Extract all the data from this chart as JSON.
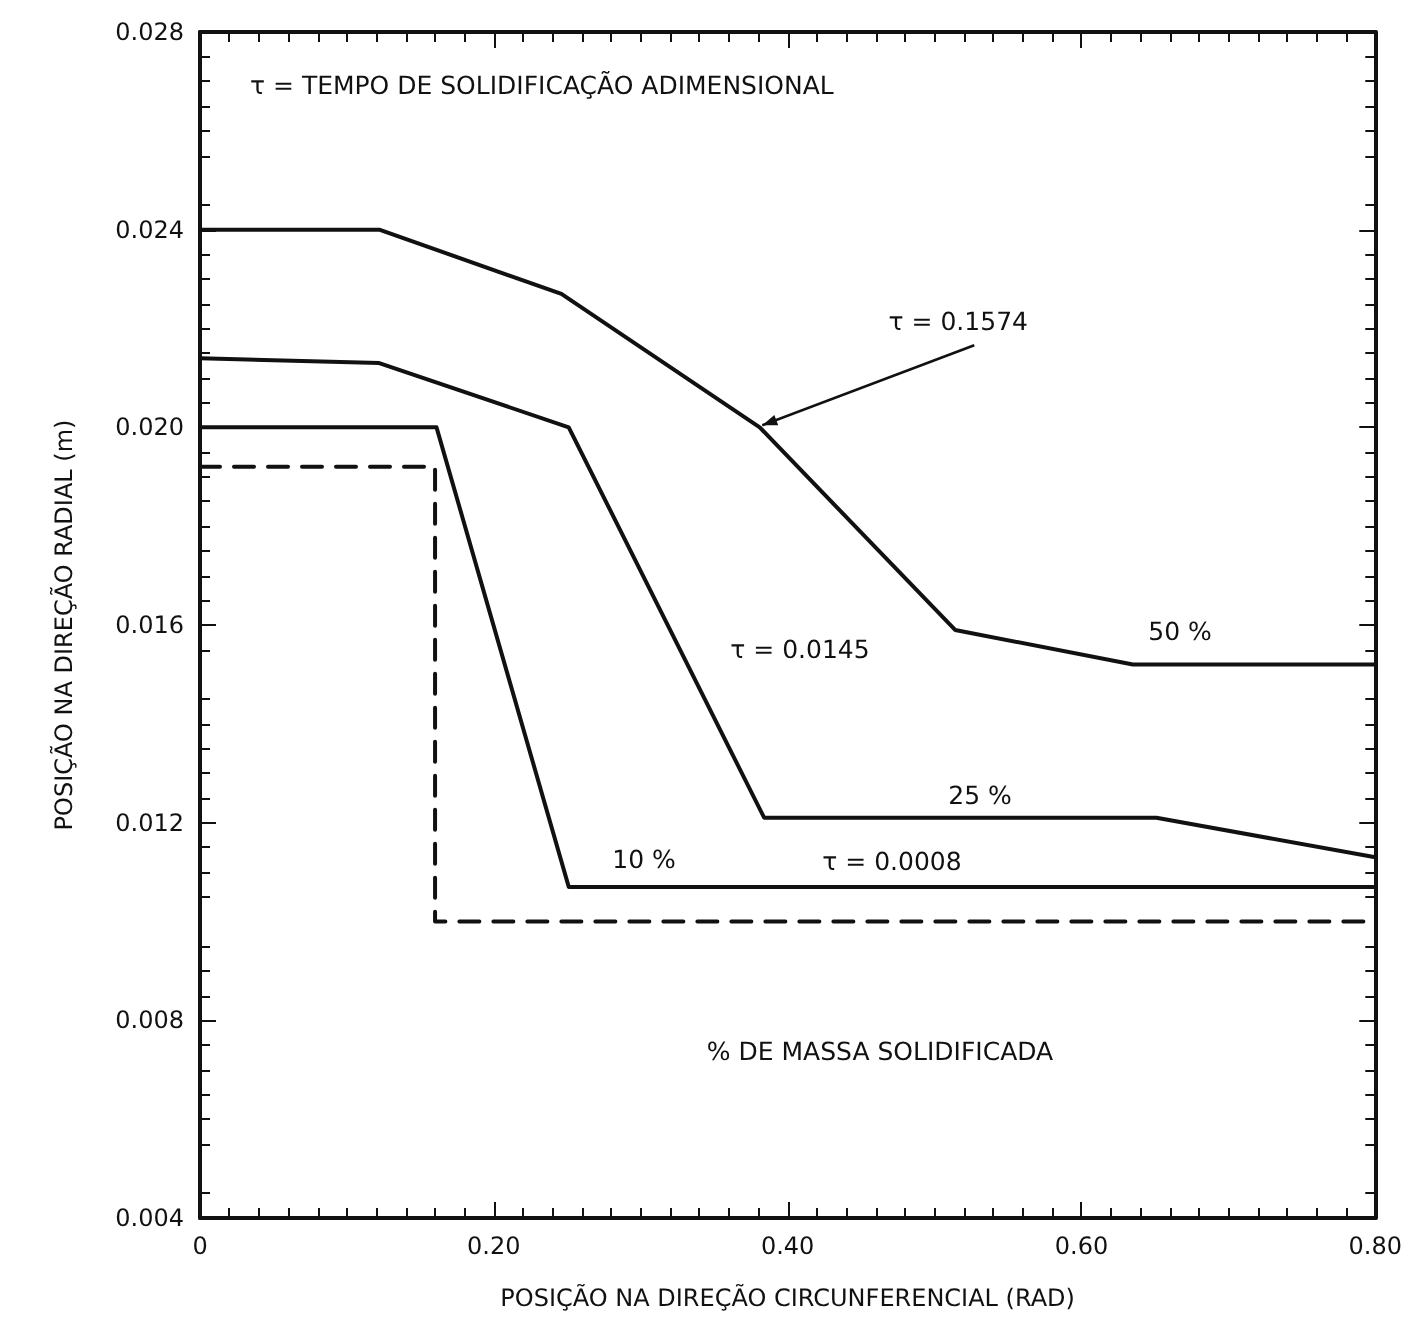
{
  "chart_data": {
    "type": "line",
    "xlabel": "POSIÇÃO NA DIREÇÃO CIRCUNFERENCIAL (RAD)",
    "ylabel": "POSIÇÃO NA DIREÇÃO RADIAL (m)",
    "xlim": [
      0,
      0.8
    ],
    "xticks": [
      0,
      {
        "value": 0.2,
        "label": "0.20"
      },
      {
        "value": 0.4,
        "label": "0.40"
      },
      {
        "value": 0.6,
        "label": "0.60"
      },
      {
        "value": 0.8,
        "label": "0.80"
      }
    ],
    "ylim": [
      0.004,
      0.028
    ],
    "yticks": [
      {
        "value": 0.004,
        "label": "0.004"
      },
      {
        "value": 0.008,
        "label": "0.008"
      },
      {
        "value": 0.012,
        "label": "0.012"
      },
      {
        "value": 0.016,
        "label": "0.016"
      },
      {
        "value": 0.02,
        "label": "0.020"
      },
      {
        "value": 0.024,
        "label": "0.024"
      },
      {
        "value": 0.028,
        "label": "0.028"
      }
    ],
    "grid": false,
    "marker": "none",
    "series": [
      {
        "color": "#111111",
        "line_style": "solid",
        "x": [
          0,
          0.122,
          0.246,
          0.381,
          0.514,
          0.635,
          0.8
        ],
        "values": [
          0.024,
          0.024,
          0.0227,
          0.02,
          0.0159,
          0.0152,
          0.0152
        ]
      },
      {
        "color": "#111111",
        "line_style": "solid",
        "x": [
          0,
          0.122,
          0.251,
          0.384,
          0.651,
          0.8
        ],
        "values": [
          0.0214,
          0.0213,
          0.02,
          0.0121,
          0.0121,
          0.0113
        ]
      },
      {
        "color": "#111111",
        "line_style": "solid",
        "x": [
          0,
          0.161,
          0.251,
          0.8
        ],
        "values": [
          0.02,
          0.02,
          0.0107,
          0.0107
        ]
      },
      {
        "color": "#111111",
        "line_style": "dashed",
        "x": [
          0,
          0.16,
          0.16,
          0.8
        ],
        "values": [
          0.0192,
          0.0192,
          0.01,
          0.01
        ]
      }
    ],
    "annotations": [
      "τ = TEMPO DE SOLIDIFICAÇÃO ADIMENSIONAL",
      "% DE MASSA SOLIDIFICADA",
      {
        "text": "τ = 0.1574",
        "x": 0.38,
        "y": 0.02
      },
      "50 %",
      "τ = 0.0145",
      "25 %",
      "10 %",
      "τ = 0.0008"
    ]
  }
}
